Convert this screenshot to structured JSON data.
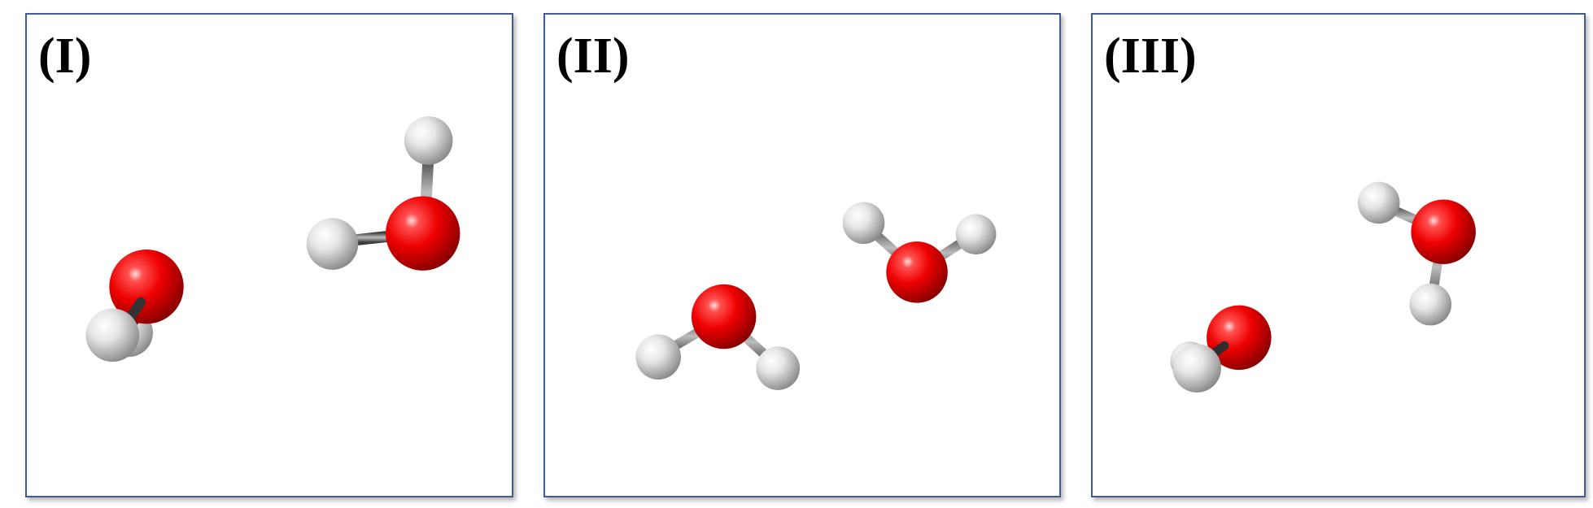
{
  "panels": [
    {
      "label": "(I)"
    },
    {
      "label": "(II)"
    },
    {
      "label": "(III)"
    }
  ],
  "colors": {
    "panel_border": "#3f5b94",
    "oxygen": "#ee0000",
    "hydrogen": "#d8d8d8",
    "bond": "#555555"
  }
}
